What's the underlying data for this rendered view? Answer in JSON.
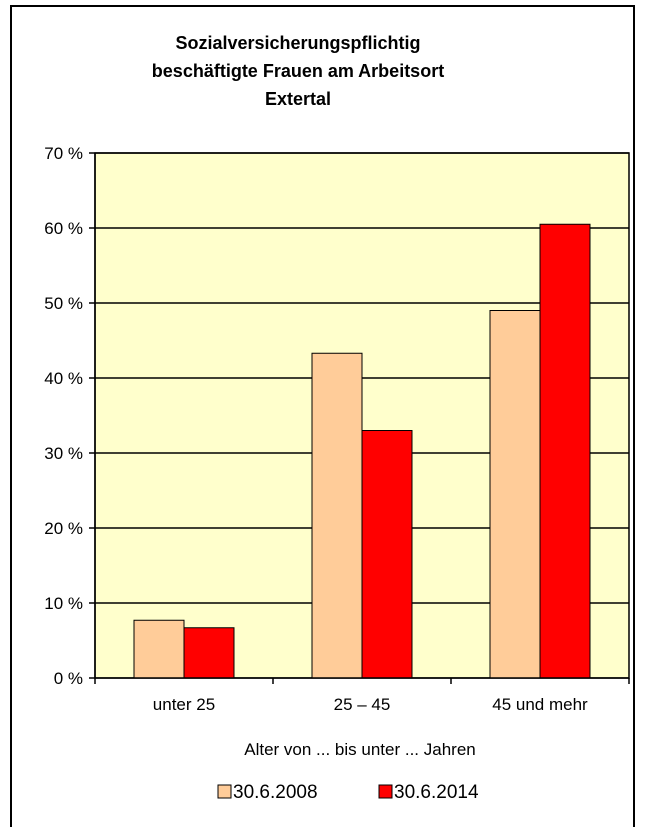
{
  "chart_data": {
    "type": "bar",
    "title_lines": [
      "Sozialversicherungspflichtig",
      "beschäftigte Frauen am Arbeitsort",
      "Extertal"
    ],
    "categories": [
      "unter 25",
      "25 – 45",
      "45 und mehr"
    ],
    "series": [
      {
        "name": "30.6.2008",
        "values": [
          7.7,
          43.3,
          49.0
        ],
        "color": "#FFCC99"
      },
      {
        "name": "30.6.2014",
        "values": [
          6.7,
          33.0,
          60.5
        ],
        "color": "#FF0000"
      }
    ],
    "xlabel": "Alter von ... bis unter ... Jahren",
    "ylabel": "",
    "ylim": [
      0,
      70
    ],
    "yticks": [
      0,
      10,
      20,
      30,
      40,
      50,
      60,
      70
    ],
    "ytick_labels": [
      "0 %",
      "10 %",
      "20 %",
      "30 %",
      "40 %",
      "50 %",
      "60 %",
      "70 %"
    ],
    "plot_background": "#FFFFCC",
    "grid": true,
    "legend_position": "bottom"
  }
}
